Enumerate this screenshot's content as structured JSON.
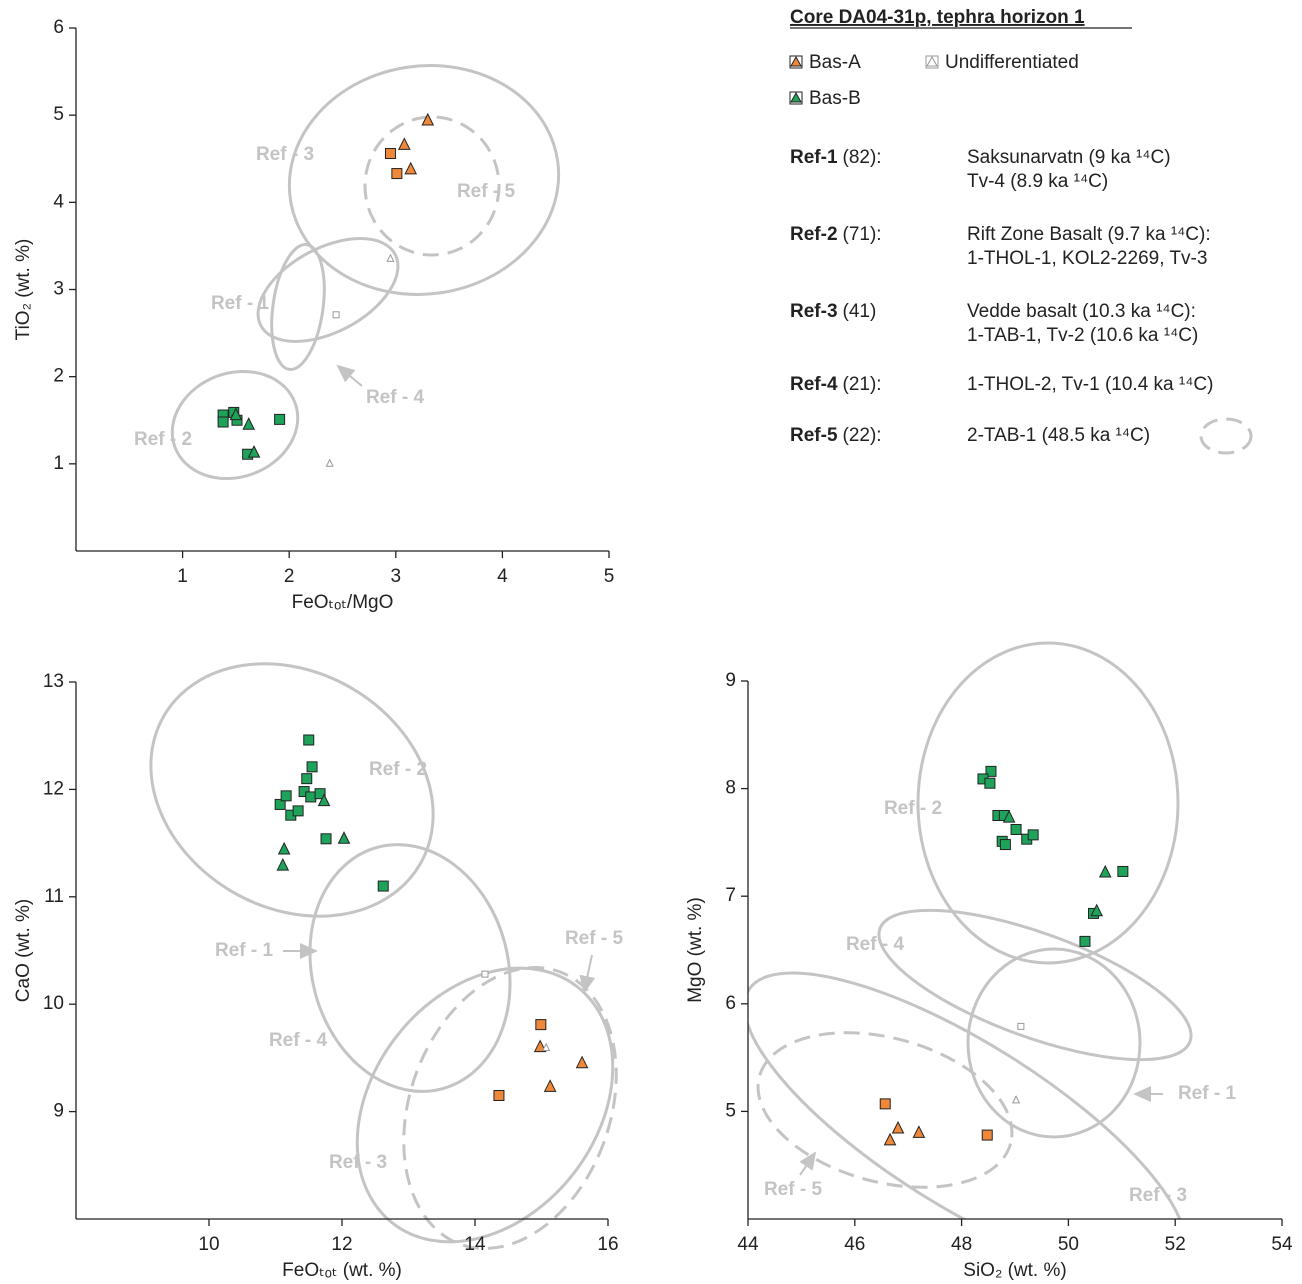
{
  "chart_data": [
    {
      "type": "scatter",
      "xlabel": "FeOₜₒₜ/MgO",
      "ylabel": "TiO₂ (wt. %)",
      "xlim": [
        0,
        5
      ],
      "ylim": [
        0,
        6
      ],
      "xticks": [
        1,
        2,
        3,
        4,
        5
      ],
      "yticks": [
        1,
        2,
        3,
        4,
        5,
        6
      ],
      "annotations": [
        "Ref - 3",
        "Ref - 5",
        "Ref - 1",
        "Ref - 4",
        "Ref - 2"
      ],
      "series": [
        {
          "name": "Bas-A",
          "color": "#f0883a",
          "x": [
            2.95,
            3.01,
            3.08,
            3.14,
            3.3
          ],
          "values": [
            4.56,
            4.33,
            4.67,
            4.39,
            4.95
          ],
          "markers": [
            "square",
            "square",
            "triangle",
            "triangle",
            "triangle"
          ]
        },
        {
          "name": "Bas-B",
          "color": "#1fa35a",
          "x": [
            1.38,
            1.38,
            1.48,
            1.51,
            1.61,
            1.91,
            1.5,
            1.62,
            1.67
          ],
          "values": [
            1.56,
            1.48,
            1.59,
            1.5,
            1.11,
            1.51,
            1.57,
            1.46,
            1.14
          ],
          "markers": [
            "square",
            "square",
            "square",
            "square",
            "square",
            "square",
            "triangle",
            "triangle",
            "triangle"
          ]
        },
        {
          "name": "Undifferentiated",
          "color": "#ffffff",
          "x": [
            2.44,
            2.95,
            2.38
          ],
          "values": [
            2.71,
            3.36,
            1.01
          ],
          "markers": [
            "square",
            "triangle",
            "triangle"
          ]
        }
      ]
    },
    {
      "type": "scatter",
      "xlabel": "FeOₜₒₜ  (wt. %)",
      "ylabel": "CaO  (wt. %)",
      "xlim": [
        8,
        16
      ],
      "ylim": [
        8,
        13
      ],
      "xticks": [
        10,
        12,
        14,
        16
      ],
      "yticks": [
        9,
        10,
        11,
        12,
        13
      ],
      "annotations": [
        "Ref - 2",
        "Ref - 1",
        "Ref - 5",
        "Ref - 4",
        "Ref - 3"
      ],
      "series": [
        {
          "color": "#f0883a",
          "x": [
            14.99,
            14.36,
            14.98,
            15.61,
            15.13
          ],
          "values": [
            9.81,
            9.15,
            9.61,
            9.46,
            9.24
          ],
          "markers": [
            "square",
            "square",
            "triangle",
            "triangle",
            "triangle"
          ]
        },
        {
          "color": "#1fa35a",
          "x": [
            11.5,
            11.55,
            11.47,
            11.43,
            11.07,
            11.16,
            11.23,
            11.34,
            11.53,
            11.67,
            11.76,
            12.62,
            11.13,
            11.11,
            11.73,
            12.03
          ],
          "values": [
            12.46,
            12.21,
            12.1,
            11.98,
            11.86,
            11.94,
            11.76,
            11.8,
            11.93,
            11.96,
            11.54,
            11.1,
            11.45,
            11.3,
            11.9,
            11.55
          ],
          "markers": [
            "square",
            "square",
            "square",
            "square",
            "square",
            "square",
            "square",
            "square",
            "square",
            "square",
            "square",
            "square",
            "triangle",
            "triangle",
            "triangle",
            "triangle"
          ]
        },
        {
          "color": "#ffffff",
          "x": [
            14.15,
            15.07
          ],
          "values": [
            10.28,
            9.6
          ],
          "markers": [
            "square",
            "triangle"
          ]
        }
      ]
    },
    {
      "type": "scatter",
      "xlabel": "SiO₂  (wt. %)",
      "ylabel": "MgO  (wt. %)",
      "xlim": [
        44,
        54
      ],
      "ylim": [
        4,
        9
      ],
      "xticks": [
        44,
        46,
        48,
        50,
        52,
        54
      ],
      "yticks": [
        5,
        6,
        7,
        8,
        9
      ],
      "annotations": [
        "Ref - 2",
        "Ref - 4",
        "Ref - 1",
        "Ref - 5",
        "Ref - 3"
      ],
      "series": [
        {
          "color": "#f0883a",
          "x": [
            46.57,
            48.48,
            46.66,
            46.81,
            47.2
          ],
          "values": [
            5.07,
            4.78,
            4.74,
            4.85,
            4.81
          ],
          "markers": [
            "square",
            "square",
            "triangle",
            "triangle",
            "triangle"
          ]
        },
        {
          "color": "#1fa35a",
          "x": [
            48.55,
            48.4,
            48.53,
            48.68,
            48.8,
            49.02,
            48.76,
            48.82,
            49.22,
            49.34,
            50.31,
            50.47,
            51.02,
            48.89,
            50.53,
            50.69
          ],
          "values": [
            8.16,
            8.09,
            8.05,
            7.75,
            7.75,
            7.62,
            7.51,
            7.48,
            7.53,
            7.57,
            6.58,
            6.84,
            7.23,
            7.74,
            6.87,
            7.23
          ],
          "markers": [
            "square",
            "square",
            "square",
            "square",
            "square",
            "square",
            "square",
            "square",
            "square",
            "square",
            "square",
            "square",
            "square",
            "triangle",
            "triangle",
            "triangle"
          ]
        },
        {
          "color": "#ffffff",
          "x": [
            49.11,
            49.02
          ],
          "values": [
            5.79,
            5.11
          ],
          "markers": [
            "square",
            "triangle"
          ]
        }
      ]
    }
  ],
  "legend": {
    "title": "Core DA04-31p, tephra horizon 1",
    "refs": [
      {
        "name": "Ref-1",
        "count": "(82):",
        "lines": [
          "Saksunarvatn (9 ka ¹⁴C)",
          "Tv-4 (8.9 ka ¹⁴C)"
        ]
      },
      {
        "name": "Ref-2",
        "count": "(71):",
        "lines": [
          "Rift Zone Basalt (9.7 ka ¹⁴C):",
          "1-THOL-1, KOL2-2269, Tv-3"
        ]
      },
      {
        "name": "Ref-3",
        "count": "(41)",
        "lines": [
          "Vedde basalt (10.3 ka ¹⁴C):",
          "1-TAB-1, Tv-2 (10.6 ka ¹⁴C)"
        ]
      },
      {
        "name": "Ref-4",
        "count": "(21):",
        "lines": [
          "1-THOL-2, Tv-1 (10.4 ka ¹⁴C)"
        ]
      },
      {
        "name": "Ref-5",
        "count": "(22):",
        "lines": [
          "2-TAB-1 (48.5 ka ¹⁴C)"
        ]
      }
    ]
  }
}
